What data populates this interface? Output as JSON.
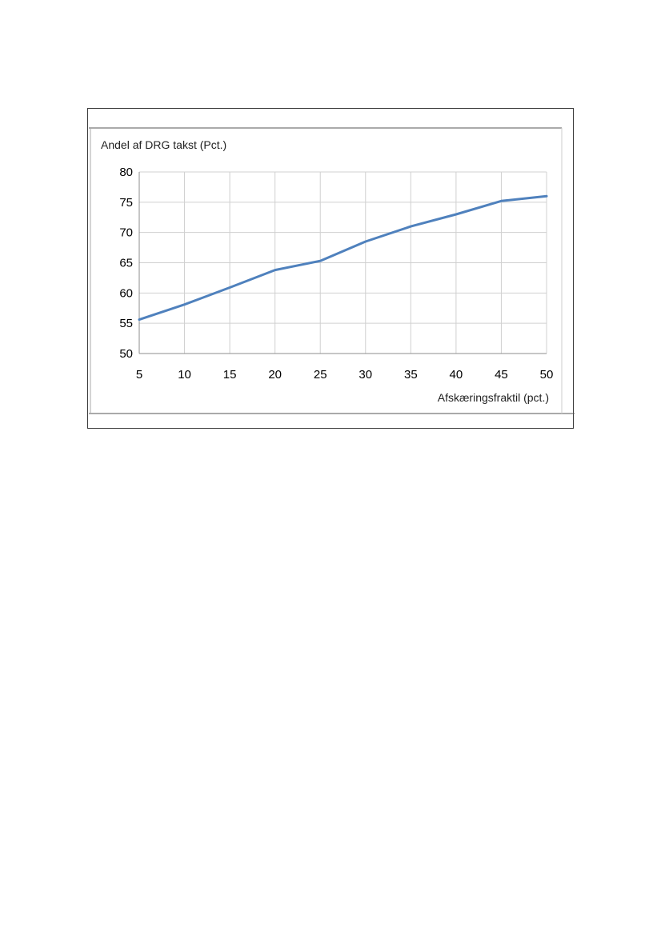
{
  "chart_data": {
    "type": "line",
    "title": "",
    "ylabel": "Andel af DRG takst (Pct.)",
    "xlabel": "Afskæringsfraktil (pct.)",
    "xlim": [
      5,
      50
    ],
    "ylim": [
      50,
      80
    ],
    "xticks": [
      5,
      10,
      15,
      20,
      25,
      30,
      35,
      40,
      45,
      50
    ],
    "yticks": [
      50,
      55,
      60,
      65,
      70,
      75,
      80
    ],
    "grid": true,
    "legend": "none",
    "series": [
      {
        "color": "#4F81BD",
        "x": [
          5,
          10,
          15,
          20,
          25,
          30,
          35,
          40,
          45,
          50
        ],
        "y": [
          55.6,
          58.1,
          60.9,
          63.8,
          65.3,
          68.5,
          71.0,
          73.0,
          75.2,
          76.0
        ]
      }
    ]
  }
}
